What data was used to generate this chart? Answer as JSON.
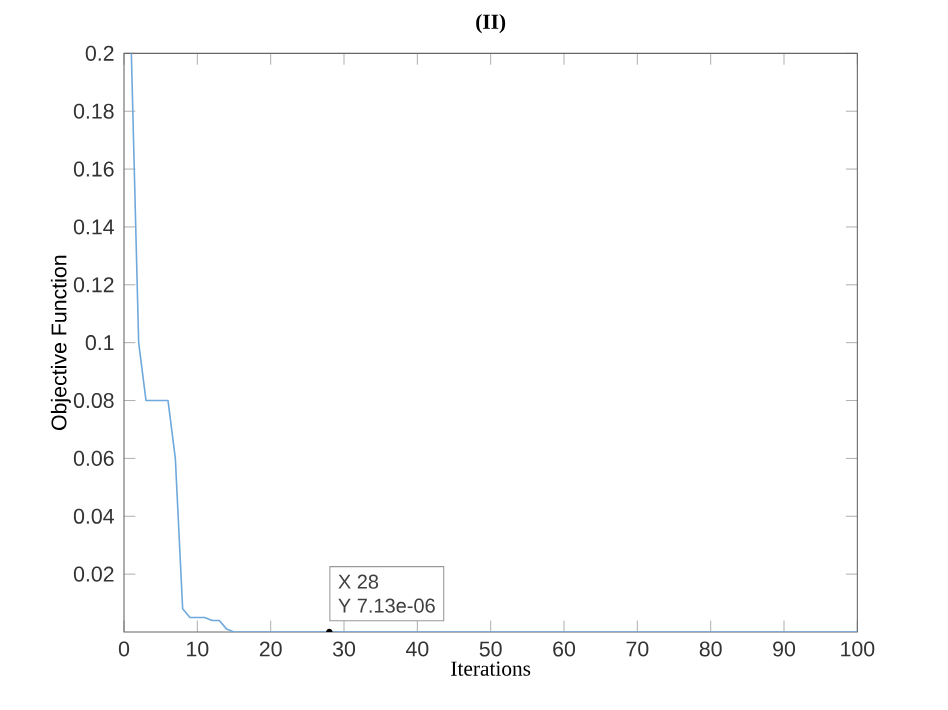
{
  "chart_data": {
    "type": "line",
    "title": "(II)",
    "xlabel": "Iterations",
    "ylabel": "Objective Function",
    "x": [
      1,
      2,
      3,
      6,
      7,
      8,
      9,
      11,
      12,
      13,
      14,
      15,
      100
    ],
    "series": [
      {
        "color": "#6fa8dc",
        "values": [
          0.2,
          0.1,
          0.08,
          0.08,
          0.06,
          0.008,
          0.005,
          0.005,
          0.004,
          0.004,
          0.001,
          7.13e-06,
          7.13e-06
        ]
      }
    ],
    "xlim": [
      0,
      100
    ],
    "xticks": [
      0,
      10,
      20,
      30,
      40,
      50,
      60,
      70,
      80,
      90,
      100
    ],
    "ylim": [
      0,
      0.2
    ],
    "yticks": [
      0.02,
      0.04,
      0.06,
      0.08,
      0.1,
      0.12,
      0.14,
      0.16,
      0.18,
      0.2
    ],
    "annotations": [
      {
        "text": "X 28",
        "x": 28,
        "y": 7.13e-06
      },
      "Y 7.13e-06"
    ]
  }
}
